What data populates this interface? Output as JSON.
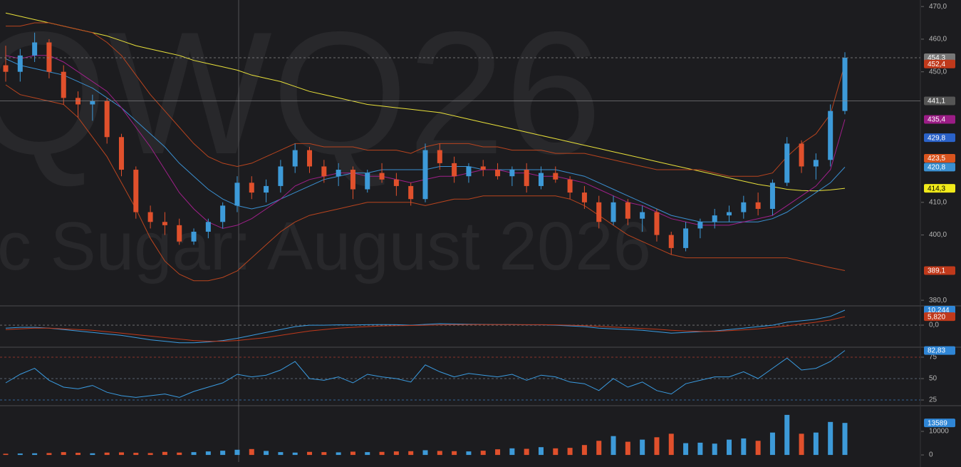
{
  "chart_data": [
    {
      "type": "candlestick",
      "watermarks": [
        "QWQ26",
        "c Sugar: August 2026"
      ],
      "up_color": "#3d9ad8",
      "down_color": "#e0502c",
      "open": [
        452,
        450,
        455,
        459,
        450,
        442,
        440,
        441,
        430,
        420,
        407,
        404,
        403,
        398,
        401,
        404,
        409,
        416,
        413,
        415,
        421,
        426,
        421,
        418,
        420,
        414,
        419,
        417,
        415,
        411,
        426,
        422,
        418,
        421,
        420,
        418,
        420,
        415,
        419,
        417,
        413,
        410,
        404,
        410,
        405,
        407,
        400,
        396,
        402,
        404,
        406,
        407,
        410,
        408,
        416,
        428,
        421,
        423,
        438
      ],
      "high": [
        458,
        457,
        462,
        460,
        452,
        444,
        443,
        442,
        431,
        421,
        409,
        407,
        405,
        402,
        405,
        410,
        418,
        418,
        417,
        423,
        428,
        427,
        423,
        422,
        421,
        420,
        422,
        419,
        416,
        428,
        428,
        424,
        422,
        423,
        422,
        421,
        422,
        421,
        421,
        418,
        415,
        412,
        412,
        411,
        409,
        408,
        401,
        404,
        405,
        408,
        409,
        412,
        413,
        417,
        430,
        429,
        425,
        440,
        456
      ],
      "low": [
        447,
        447,
        453,
        448,
        440,
        436,
        435,
        428,
        418,
        405,
        402,
        400,
        397,
        397,
        399,
        402,
        407,
        411,
        410,
        413,
        419,
        419,
        416,
        415,
        411,
        413,
        416,
        412,
        409,
        410,
        420,
        416,
        416,
        418,
        417,
        415,
        413,
        414,
        416,
        411,
        408,
        402,
        403,
        403,
        401,
        398,
        394,
        395,
        399,
        402,
        404,
        405,
        406,
        406,
        415,
        419,
        417,
        421,
        437
      ],
      "close": [
        450,
        455,
        459,
        450,
        442,
        440,
        441,
        430,
        420,
        407,
        404,
        403,
        398,
        401,
        404,
        409,
        416,
        413,
        415,
        421,
        426,
        421,
        418,
        420,
        414,
        419,
        417,
        415,
        411,
        426,
        422,
        418,
        421,
        420,
        418,
        420,
        415,
        419,
        417,
        413,
        410,
        404,
        410,
        405,
        407,
        400,
        396,
        402,
        404,
        406,
        407,
        410,
        408,
        416,
        428,
        421,
        423,
        438,
        454.3
      ],
      "overlays": [
        {
          "color": "#e8e03a",
          "values": [
            468,
            467,
            466,
            465,
            464,
            463,
            462,
            461,
            459.5,
            458,
            457,
            456,
            455,
            453.5,
            452.5,
            451.5,
            450.5,
            449,
            448,
            447,
            445.5,
            444,
            443,
            442,
            441,
            440,
            439.5,
            439,
            438.5,
            438,
            437.5,
            436.5,
            435.5,
            434.5,
            433.5,
            432.5,
            431.5,
            430.5,
            429.5,
            428.5,
            427.5,
            426.5,
            425.5,
            424.5,
            423.5,
            422.5,
            421.5,
            420.5,
            419.5,
            418.5,
            417.5,
            416.5,
            415.5,
            414.8,
            414,
            413.6,
            413.5,
            413.8,
            414.3
          ]
        },
        {
          "color": "#3a8fd0",
          "values": [
            454,
            452,
            451,
            450,
            449,
            447,
            445,
            442,
            439,
            435,
            431,
            427,
            422,
            418,
            414,
            411,
            409,
            408,
            409,
            411,
            413,
            415,
            417,
            418,
            419,
            419,
            420,
            420,
            420,
            420,
            421,
            421,
            421,
            420,
            420,
            420,
            420,
            420,
            420,
            419,
            418,
            416,
            414,
            412,
            410,
            408,
            406,
            405,
            404,
            404,
            404,
            404,
            404,
            405,
            407,
            410,
            413,
            416,
            420.8
          ]
        },
        {
          "color": "#a0208a",
          "values": [
            455,
            454,
            455,
            455,
            453,
            450,
            447,
            444,
            439,
            433,
            427,
            420,
            413,
            408,
            404,
            402,
            403,
            405,
            408,
            411,
            415,
            417,
            418,
            419,
            419,
            418,
            418,
            417,
            416,
            417,
            418,
            418,
            419,
            420,
            420,
            419,
            419,
            418,
            418,
            417,
            416,
            414,
            412,
            410,
            409,
            407,
            405,
            404,
            403,
            403,
            403,
            404,
            405,
            406,
            409,
            412,
            415,
            420,
            435.4
          ]
        },
        {
          "color": "#b8441f",
          "values": [
            464,
            464,
            465,
            465,
            464,
            463,
            462,
            459,
            455,
            449,
            443,
            438,
            433,
            428,
            424,
            422,
            421,
            422,
            424,
            426,
            428,
            428,
            427,
            427,
            427,
            426,
            426,
            426,
            425,
            427,
            428,
            428,
            428,
            427,
            427,
            426,
            426,
            426,
            425,
            425,
            425,
            424,
            423,
            422,
            421,
            420,
            420,
            420,
            420,
            419,
            418,
            418,
            418,
            419,
            424,
            428,
            431,
            437,
            452.4
          ]
        },
        {
          "color": "#b8441f",
          "values": [
            446,
            443,
            442,
            441,
            440,
            436,
            430,
            424,
            416,
            408,
            399,
            392,
            388,
            386,
            386,
            387,
            389,
            393,
            397,
            401,
            404,
            406,
            407,
            408,
            409,
            410,
            410,
            410,
            410,
            409,
            410,
            411,
            411,
            412,
            412,
            412,
            412,
            412,
            412,
            411,
            409,
            406,
            403,
            400,
            398,
            396,
            394,
            393,
            393,
            393,
            393,
            393,
            393,
            393,
            393,
            392,
            391,
            390,
            389.1
          ]
        }
      ],
      "ylim": [
        378.5,
        472
      ],
      "yticks": [
        {
          "value": 380,
          "label": "380,0"
        },
        {
          "value": 400,
          "label": "400,0"
        },
        {
          "value": 410,
          "label": "410,0"
        },
        {
          "value": 450,
          "label": "450,0"
        },
        {
          "value": 460,
          "label": "460,0"
        },
        {
          "value": 470,
          "label": "470,0"
        }
      ],
      "annotations": [
        {
          "value": 454.3,
          "label": "454,3",
          "color": "#777777",
          "line": "dashed"
        },
        {
          "value": 452.4,
          "label": "452,4",
          "color": "#c0391b"
        },
        {
          "value": 441.1,
          "label": "441,1",
          "color": "#555555",
          "line": "solid"
        },
        {
          "value": 435.4,
          "label": "435,4",
          "color": "#9b1c86"
        },
        {
          "value": 429.8,
          "label": "429,8",
          "color": "#2a62c9"
        },
        {
          "value": 423.5,
          "label": "423,5",
          "color": "#d9541e"
        },
        {
          "value": 420.8,
          "label": "420,8",
          "color": "#3a8fd0"
        },
        {
          "value": 414.3,
          "label": "414,3",
          "color": "#f1ea1a",
          "text_color": "#000000"
        },
        {
          "value": 389.1,
          "label": "389,1",
          "color": "#c0391b"
        }
      ]
    },
    {
      "type": "line",
      "series": [
        {
          "color": "#3a9be0",
          "values": [
            -2,
            -1.5,
            -1.5,
            -2,
            -3,
            -4,
            -5,
            -6,
            -7,
            -8.5,
            -10,
            -11,
            -12,
            -12,
            -11.5,
            -10.5,
            -9,
            -7,
            -5,
            -3,
            -1,
            0,
            0,
            0.2,
            0.1,
            0.3,
            0.4,
            0.3,
            0,
            0.5,
            1,
            0.8,
            0.6,
            0.5,
            0.4,
            0.4,
            0.2,
            0.2,
            0,
            -0.5,
            -1,
            -2,
            -2.5,
            -3,
            -3.5,
            -4.5,
            -5.5,
            -5,
            -4.5,
            -4,
            -3,
            -2,
            -1,
            0,
            2,
            3,
            4,
            6,
            10.244
          ]
        },
        {
          "color": "#c0391b",
          "values": [
            -3,
            -2.5,
            -2,
            -2,
            -2.5,
            -3,
            -3.5,
            -4.5,
            -5.5,
            -6.5,
            -7.5,
            -8.5,
            -9.5,
            -10.5,
            -11,
            -11,
            -10.5,
            -9.5,
            -8.5,
            -7,
            -5.5,
            -4,
            -3,
            -2,
            -1.5,
            -1,
            -0.5,
            -0.3,
            -0.2,
            0,
            0.2,
            0.3,
            0.4,
            0.4,
            0.4,
            0.4,
            0.3,
            0.3,
            0.2,
            0,
            -0.3,
            -0.8,
            -1.3,
            -1.8,
            -2.3,
            -2.8,
            -3.5,
            -4,
            -4.2,
            -4.2,
            -3.8,
            -3.2,
            -2.5,
            -1.5,
            -0.5,
            0.8,
            2,
            3.5,
            5.82
          ]
        }
      ],
      "ylim": [
        -14.6,
        12.7
      ],
      "yticks": [
        {
          "value": 0,
          "label": "0,0"
        }
      ],
      "grid_colors": [
        "#777777"
      ],
      "annotations": [
        {
          "value": 10.244,
          "label": "10,244",
          "color": "#2f86d6"
        },
        {
          "value": 5.82,
          "label": "5,820",
          "color": "#c0391b"
        }
      ]
    },
    {
      "type": "line",
      "series": [
        {
          "color": "#3a9be0",
          "values": [
            45,
            55,
            62,
            48,
            40,
            38,
            42,
            34,
            30,
            28,
            30,
            32,
            28,
            35,
            40,
            45,
            55,
            52,
            54,
            60,
            70,
            50,
            48,
            52,
            45,
            55,
            52,
            50,
            46,
            66,
            58,
            52,
            56,
            54,
            52,
            55,
            48,
            54,
            52,
            46,
            44,
            36,
            50,
            40,
            46,
            36,
            32,
            44,
            48,
            52,
            52,
            58,
            50,
            62,
            74,
            60,
            62,
            70,
            82.83
          ]
        }
      ],
      "ylim": [
        19.2,
        85.8
      ],
      "yticks": [
        25,
        50,
        75
      ],
      "grid_colors": [
        "#3a7bbf",
        "#6a7a8a",
        "#b03a2e"
      ],
      "annotations": [
        {
          "value": 82.83,
          "label": "82,83",
          "color": "#2f86d6"
        }
      ]
    },
    {
      "type": "bar",
      "values": [
        500,
        600,
        700,
        800,
        1200,
        900,
        700,
        1000,
        1100,
        900,
        800,
        1300,
        1000,
        1200,
        1500,
        1800,
        2200,
        2500,
        1700,
        1200,
        1000,
        1300,
        1200,
        1100,
        1400,
        1200,
        1300,
        1500,
        1600,
        2000,
        1700,
        1600,
        1500,
        1800,
        2400,
        2800,
        2600,
        3300,
        2800,
        3000,
        4200,
        6000,
        8000,
        5600,
        6500,
        7500,
        9000,
        5000,
        5200,
        4800,
        6500,
        7000,
        6000,
        9500,
        17000,
        9000,
        9500,
        14000,
        13589
      ],
      "ylim": [
        -3000,
        20600
      ],
      "yticks": [
        0,
        10000
      ],
      "annotations": [
        {
          "value": 13589,
          "label": "13589",
          "color": "#2f86d6"
        }
      ]
    }
  ]
}
